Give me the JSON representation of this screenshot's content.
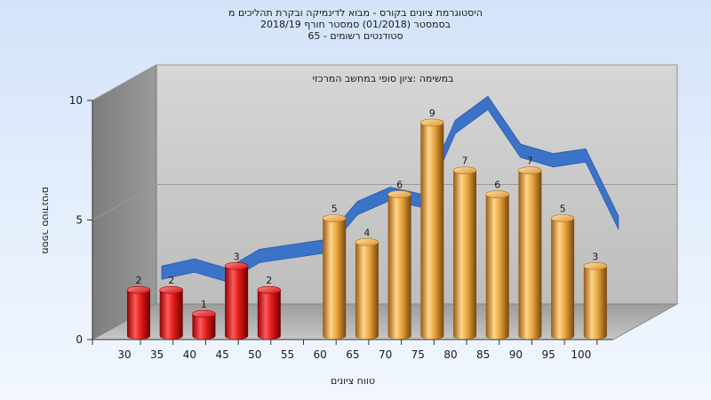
{
  "chart_data": {
    "type": "bar",
    "title_lines": [
      "היסטוגרמת ציונים בקורס - מבוא לדינמיקה ובקרת תהליכים מ",
      "בסמסטר  (01/2018)  סמסטר חורף  2018/19",
      "סטודנטים רשומים - 65"
    ],
    "annotation": "במשימה :ציון סופי במחשב המרכזי",
    "xlabel": "טווח ציונים",
    "ylabel": "מספר סטודנטים",
    "ylim": [
      0,
      10
    ],
    "y_ticks": [
      0,
      5,
      10
    ],
    "x_ticks": [
      "30",
      "35",
      "40",
      "45",
      "50",
      "55",
      "60",
      "65",
      "70",
      "75",
      "80",
      "85",
      "90",
      "95",
      "100"
    ],
    "categories": [
      "30",
      "35",
      "40",
      "45",
      "50",
      "55",
      "60",
      "65",
      "70",
      "75",
      "80",
      "85",
      "90",
      "95",
      "100"
    ],
    "values": [
      2,
      2,
      1,
      3,
      2,
      0,
      5,
      4,
      6,
      9,
      7,
      6,
      7,
      5,
      3
    ],
    "value_labels": [
      "2",
      "2",
      "1",
      "3",
      "2",
      "",
      "5",
      "4",
      "6",
      "9",
      "7",
      "6",
      "7",
      "5",
      "3"
    ],
    "bar_colors": [
      "red",
      "red",
      "red",
      "red",
      "red",
      "",
      "orange",
      "orange",
      "orange",
      "orange",
      "orange",
      "orange",
      "orange",
      "orange",
      "orange"
    ],
    "trend_line": {
      "values": [
        2.5,
        2.8,
        2.4,
        3.2,
        3.4,
        3.6,
        5.2,
        5.8,
        5.5,
        8.6,
        9.6,
        7.6,
        7.2,
        7.4,
        4.6
      ],
      "color": "#3b73c8"
    },
    "grid": true,
    "legend": "none"
  },
  "colors": {
    "red_bar": "#e01e1e",
    "orange_bar": "#e8a640",
    "trend": "#3b73c8",
    "back_wall": "#c8c8c8",
    "left_wall": "#8a8a8a",
    "floor": "#b4b4b4"
  }
}
